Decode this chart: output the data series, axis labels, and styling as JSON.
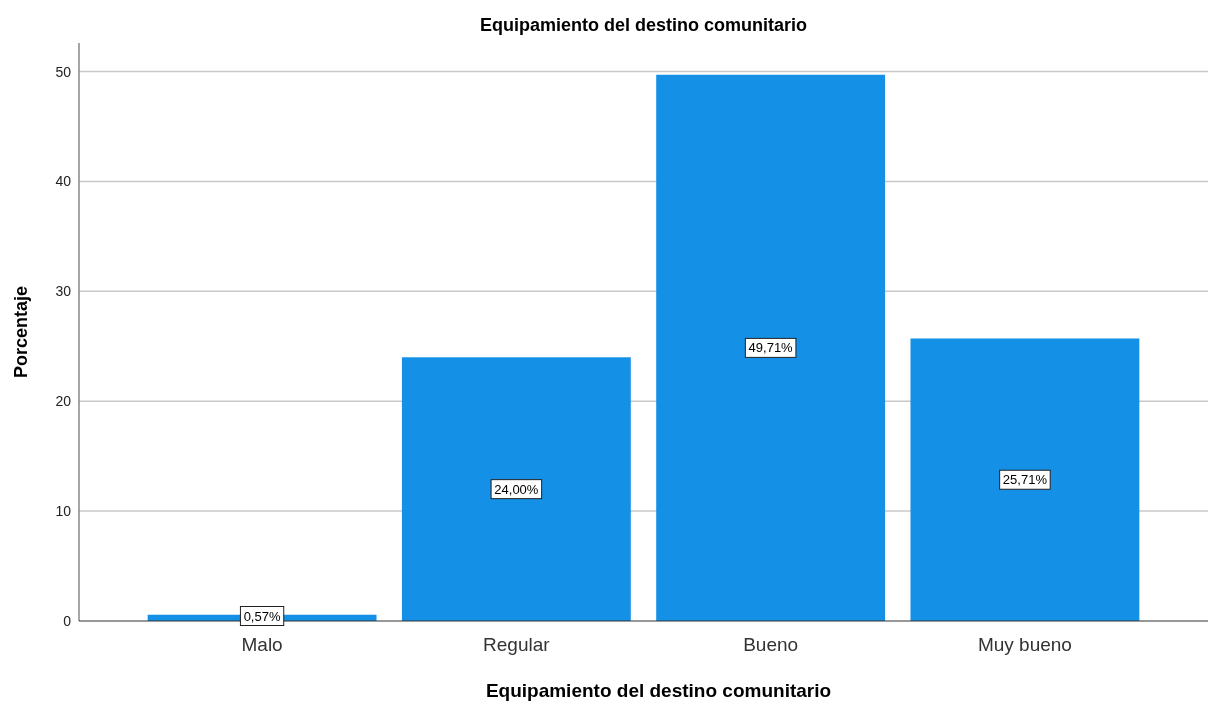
{
  "chart_data": {
    "type": "bar",
    "title": "Equipamiento del destino comunitario",
    "xlabel": "Equipamiento del destino comunitario",
    "ylabel": "Porcentaje",
    "categories": [
      "Malo",
      "Regular",
      "Bueno",
      "Muy bueno"
    ],
    "values": [
      0.57,
      24.0,
      49.71,
      25.71
    ],
    "value_labels": [
      "0,57%",
      "24,00%",
      "49,71%",
      "25,71%"
    ],
    "color": "#1490e6",
    "ylim": [
      0,
      52.6
    ],
    "yticks": [
      0,
      10,
      20,
      30,
      40,
      50
    ],
    "grid": "y"
  }
}
